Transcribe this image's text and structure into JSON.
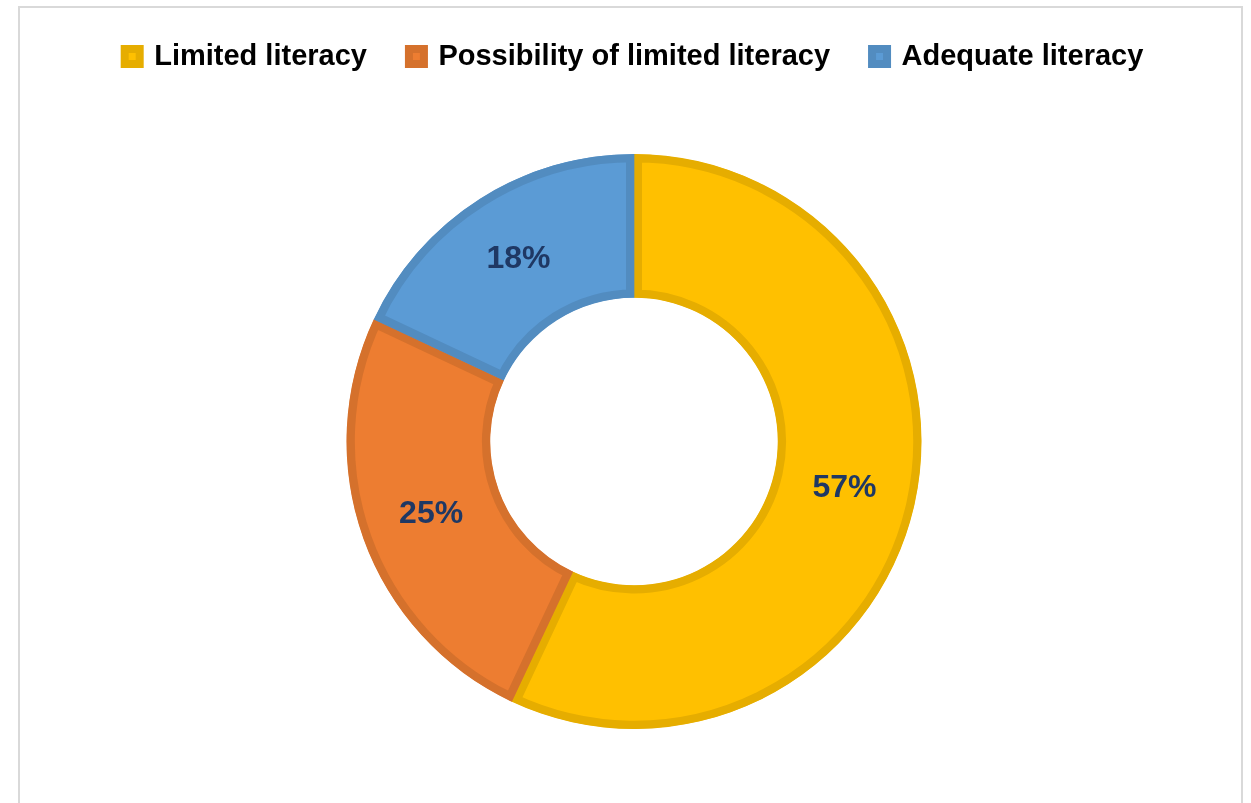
{
  "chart_data": {
    "type": "donut",
    "categories": [
      "Limited literacy",
      "Possibility of limited literacy",
      "Adequate literacy"
    ],
    "values": [
      57,
      25,
      18
    ],
    "colors": [
      "#ffc000",
      "#ed7d31",
      "#5b9bd5"
    ],
    "value_labels": [
      "57%",
      "25%",
      "18%"
    ],
    "legend": "top"
  }
}
